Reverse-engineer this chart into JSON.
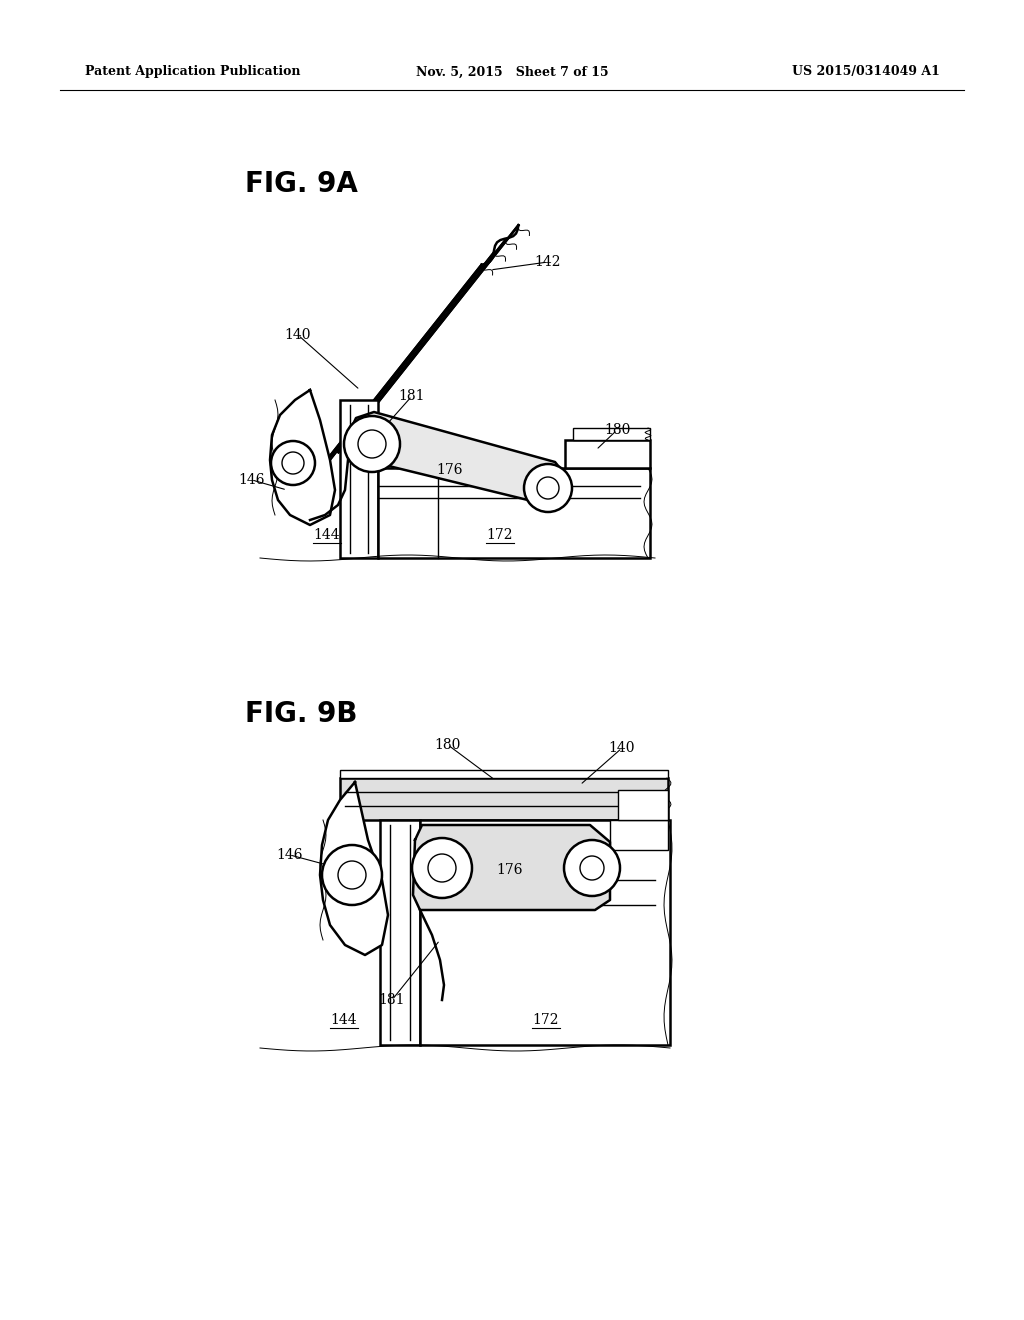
{
  "bg_color": "#ffffff",
  "line_color": "#000000",
  "header_left": "Patent Application Publication",
  "header_mid": "Nov. 5, 2015   Sheet 7 of 15",
  "header_right": "US 2015/0314049 A1",
  "fig_title_9a": "FIG. 9A",
  "fig_title_9b": "FIG. 9B",
  "lw_main": 1.8,
  "lw_thin": 1.0,
  "lw_hair": 0.7
}
